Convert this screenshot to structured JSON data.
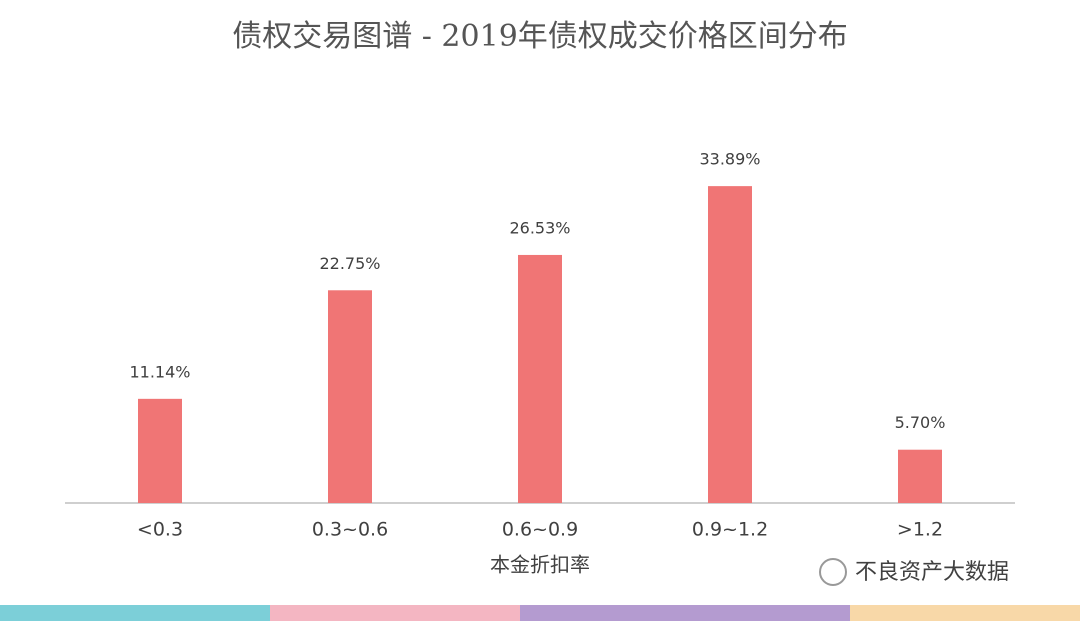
{
  "chart_data": {
    "type": "bar",
    "title": "债权交易图谱 - 2019年债权成交价格区间分布",
    "x_label": "本金折扣率",
    "categories": [
      "<0.3",
      "0.3~0.6",
      "0.6~0.9",
      "0.9~1.2",
      ">1.2"
    ],
    "values": [
      11.14,
      22.75,
      26.53,
      33.89,
      5.7
    ],
    "value_labels": [
      "11.14%",
      "22.75%",
      "26.53%",
      "33.89%",
      "5.70%"
    ],
    "color": "#f07575",
    "ylim": [
      0,
      40
    ],
    "watermark": "不良资产大数据"
  }
}
